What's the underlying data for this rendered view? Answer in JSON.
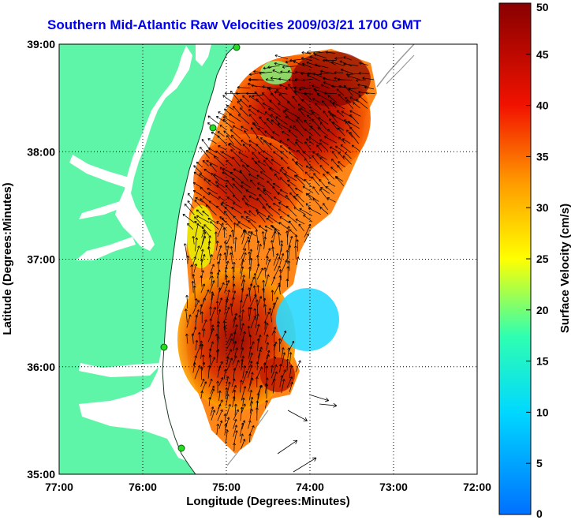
{
  "title": "Southern Mid-Atlantic Raw Velocities 2009/03/21 1700 GMT",
  "colors": {
    "land": "#5ff5a8",
    "water": "#ffffff",
    "title": "#0000ee",
    "arrow": "#000000",
    "isobath": "#9a9a9a",
    "station": "#22dd22"
  },
  "map": {
    "xlabel": "Longitude (Degrees:Minutes)",
    "ylabel": "Latitude (Degrees:Minutes)",
    "x_ticks": [
      "77:00",
      "76:00",
      "75:00",
      "74:00",
      "73:00",
      "72:00"
    ],
    "y_ticks": [
      "39:00",
      "38:00",
      "37:00",
      "36:00",
      "35:00"
    ],
    "lon_range": [
      -77,
      -72
    ],
    "lat_range": [
      35,
      39
    ],
    "grid": "dotted"
  },
  "colorbar": {
    "label": "Surface Velocity (cm/s)",
    "range": [
      0,
      50
    ],
    "ticks": [
      "0",
      "5",
      "10",
      "15",
      "20",
      "25",
      "30",
      "35",
      "40",
      "45",
      "50"
    ]
  }
}
